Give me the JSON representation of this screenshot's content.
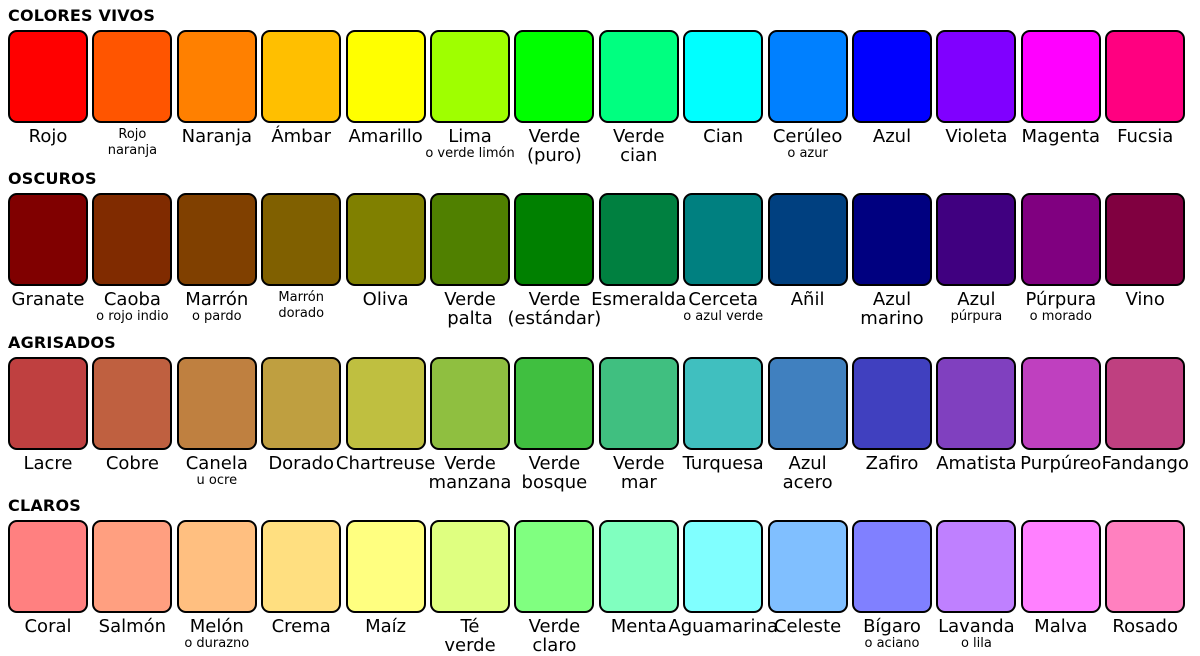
{
  "sections": [
    {
      "title": "COLORES VIVOS",
      "swatches": [
        {
          "color": "#ff0000",
          "name": [
            "Rojo"
          ]
        },
        {
          "color": "#ff5500",
          "note": [
            "Rojo",
            "naranja"
          ]
        },
        {
          "color": "#ff8000",
          "name": [
            "Naranja"
          ]
        },
        {
          "color": "#ffbf00",
          "name": [
            "Ámbar"
          ]
        },
        {
          "color": "#ffff00",
          "name": [
            "Amarillo"
          ]
        },
        {
          "color": "#9fff00",
          "name": [
            "Lima"
          ],
          "note": [
            "o verde limón"
          ]
        },
        {
          "color": "#00ff00",
          "name": [
            "Verde",
            "(puro)"
          ]
        },
        {
          "color": "#00ff80",
          "name": [
            "Verde",
            "cian"
          ]
        },
        {
          "color": "#00ffff",
          "name": [
            "Cian"
          ]
        },
        {
          "color": "#0080ff",
          "name": [
            "Cerúleo"
          ],
          "note": [
            "o azur"
          ]
        },
        {
          "color": "#0000ff",
          "name": [
            "Azul"
          ]
        },
        {
          "color": "#8000ff",
          "name": [
            "Violeta"
          ]
        },
        {
          "color": "#ff00ff",
          "name": [
            "Magenta"
          ]
        },
        {
          "color": "#ff0080",
          "name": [
            "Fucsia"
          ]
        }
      ]
    },
    {
      "title": "OSCUROS",
      "swatches": [
        {
          "color": "#800000",
          "name": [
            "Granate"
          ]
        },
        {
          "color": "#802b00",
          "name": [
            "Caoba"
          ],
          "note": [
            "o rojo indio"
          ]
        },
        {
          "color": "#804000",
          "name": [
            "Marrón"
          ],
          "note": [
            "o pardo"
          ]
        },
        {
          "color": "#806000",
          "note": [
            "Marrón",
            "dorado"
          ]
        },
        {
          "color": "#808000",
          "name": [
            "Oliva"
          ]
        },
        {
          "color": "#508000",
          "name": [
            "Verde",
            "palta"
          ]
        },
        {
          "color": "#008000",
          "name": [
            "Verde",
            "(estándar)"
          ]
        },
        {
          "color": "#008040",
          "name": [
            "Esmeralda"
          ]
        },
        {
          "color": "#008080",
          "name": [
            "Cerceta"
          ],
          "note": [
            "o azul verde"
          ]
        },
        {
          "color": "#004080",
          "name": [
            "Añil"
          ]
        },
        {
          "color": "#000080",
          "name": [
            "Azul",
            "marino"
          ]
        },
        {
          "color": "#400080",
          "name": [
            "Azul"
          ],
          "note": [
            "púrpura"
          ]
        },
        {
          "color": "#800080",
          "name": [
            "Púrpura"
          ],
          "note": [
            "o morado"
          ]
        },
        {
          "color": "#800040",
          "name": [
            "Vino"
          ]
        }
      ]
    },
    {
      "title": "AGRISADOS",
      "swatches": [
        {
          "color": "#bf4040",
          "name": [
            "Lacre"
          ]
        },
        {
          "color": "#bf6040",
          "name": [
            "Cobre"
          ]
        },
        {
          "color": "#bf8040",
          "name": [
            "Canela"
          ],
          "note": [
            "u ocre"
          ]
        },
        {
          "color": "#bf9f40",
          "name": [
            "Dorado"
          ]
        },
        {
          "color": "#bfbf40",
          "name": [
            "Chartreuse"
          ]
        },
        {
          "color": "#8fbf40",
          "name": [
            "Verde",
            "manzana"
          ]
        },
        {
          "color": "#40bf40",
          "name": [
            "Verde",
            "bosque"
          ]
        },
        {
          "color": "#40bf80",
          "name": [
            "Verde",
            "mar"
          ]
        },
        {
          "color": "#40bfbf",
          "name": [
            "Turquesa"
          ]
        },
        {
          "color": "#4080bf",
          "name": [
            "Azul",
            "acero"
          ]
        },
        {
          "color": "#4040bf",
          "name": [
            "Zafiro"
          ]
        },
        {
          "color": "#8040bf",
          "name": [
            "Amatista"
          ]
        },
        {
          "color": "#bf40bf",
          "name": [
            "Purpúreo"
          ]
        },
        {
          "color": "#bf4080",
          "name": [
            "Fandango"
          ]
        }
      ]
    },
    {
      "title": "CLAROS",
      "swatches": [
        {
          "color": "#ff8080",
          "name": [
            "Coral"
          ]
        },
        {
          "color": "#ff9f80",
          "name": [
            "Salmón"
          ]
        },
        {
          "color": "#ffbf80",
          "name": [
            "Melón"
          ],
          "note": [
            "o durazno"
          ]
        },
        {
          "color": "#ffdf80",
          "name": [
            "Crema"
          ]
        },
        {
          "color": "#ffff80",
          "name": [
            "Maíz"
          ]
        },
        {
          "color": "#dfff80",
          "name": [
            "Té",
            "verde"
          ]
        },
        {
          "color": "#80ff80",
          "name": [
            "Verde",
            "claro"
          ]
        },
        {
          "color": "#80ffbf",
          "name": [
            "Menta"
          ]
        },
        {
          "color": "#80ffff",
          "name": [
            "Aguamarina"
          ]
        },
        {
          "color": "#80bfff",
          "name": [
            "Celeste"
          ]
        },
        {
          "color": "#8080ff",
          "name": [
            "Bígaro"
          ],
          "note": [
            "o aciano"
          ]
        },
        {
          "color": "#bf80ff",
          "name": [
            "Lavanda"
          ],
          "note": [
            "o lila"
          ]
        },
        {
          "color": "#ff80ff",
          "name": [
            "Malva"
          ]
        },
        {
          "color": "#ff80bf",
          "name": [
            "Rosado"
          ]
        }
      ]
    }
  ]
}
